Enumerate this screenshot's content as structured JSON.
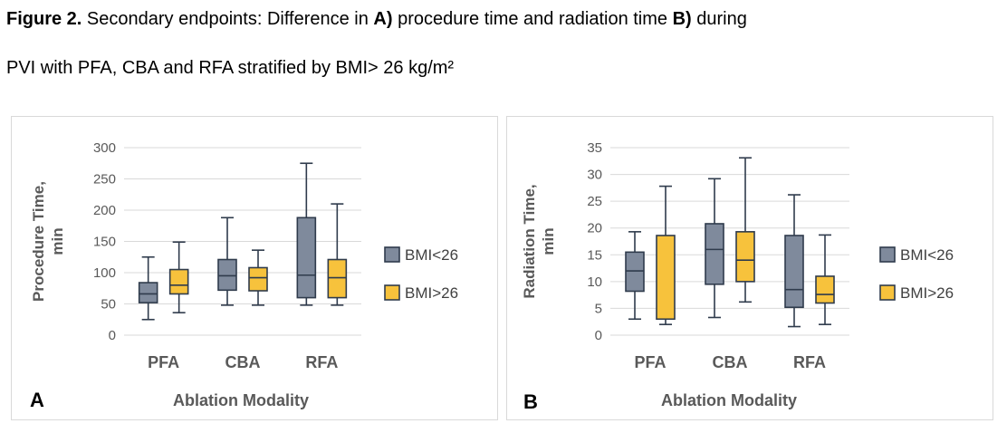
{
  "caption": {
    "line1_bold": "Figure 2.",
    "line1_a": " Secondary endpoints: Difference in ",
    "line1_bold2": "A)",
    "line1_b": " procedure time and radiation time ",
    "line1_bold3": "B)",
    "line1_c": " during",
    "line2": "PVI with PFA, CBA and RFA stratified by BMI> 26 kg/m²"
  },
  "colors": {
    "bmi_low": "#7f8a9c",
    "bmi_high": "#f7c23c",
    "stroke": "#2f3b4c",
    "grid": "#d9d9d9",
    "axis_text": "#595959"
  },
  "chart_data": [
    {
      "panel_label": "A",
      "type": "boxplot",
      "xlabel": "Ablation Modality",
      "ylabel": "Procedure Time,",
      "ylabel2": "min",
      "categories": [
        "PFA",
        "CBA",
        "RFA"
      ],
      "ylim": [
        0,
        300
      ],
      "yticks": [
        0,
        50,
        100,
        150,
        200,
        250,
        300
      ],
      "grid": true,
      "legend_position": "right",
      "series": [
        {
          "name": "BMI<26",
          "color": "#7f8a9c",
          "boxes": [
            {
              "min": 25,
              "q1": 52,
              "median": 66,
              "q3": 84,
              "max": 125
            },
            {
              "min": 48,
              "q1": 72,
              "median": 95,
              "q3": 121,
              "max": 188
            },
            {
              "min": 48,
              "q1": 60,
              "median": 96,
              "q3": 188,
              "max": 275
            }
          ]
        },
        {
          "name": "BMI>26",
          "color": "#f7c23c",
          "boxes": [
            {
              "min": 36,
              "q1": 66,
              "median": 80,
              "q3": 105,
              "max": 149
            },
            {
              "min": 48,
              "q1": 71,
              "median": 92,
              "q3": 108,
              "max": 136
            },
            {
              "min": 48,
              "q1": 60,
              "median": 92,
              "q3": 121,
              "max": 210
            }
          ]
        }
      ]
    },
    {
      "panel_label": "B",
      "type": "boxplot",
      "xlabel": "Ablation Modality",
      "ylabel": "Radiation Time,",
      "ylabel2": "min",
      "categories": [
        "PFA",
        "CBA",
        "RFA"
      ],
      "ylim": [
        0,
        35
      ],
      "yticks": [
        0,
        5,
        10,
        15,
        20,
        25,
        30,
        35
      ],
      "grid": true,
      "legend_position": "right",
      "series": [
        {
          "name": "BMI<26",
          "color": "#7f8a9c",
          "boxes": [
            {
              "min": 3,
              "q1": 8.2,
              "median": 12,
              "q3": 15.5,
              "max": 19.3
            },
            {
              "min": 3.3,
              "q1": 9.5,
              "median": 16,
              "q3": 20.8,
              "max": 29.2
            },
            {
              "min": 1.6,
              "q1": 5.2,
              "median": 8.5,
              "q3": 18.6,
              "max": 26.2
            }
          ]
        },
        {
          "name": "BMI>26",
          "color": "#f7c23c",
          "boxes": [
            {
              "min": 2,
              "q1": 3,
              "median": 3,
              "q3": 18.6,
              "max": 27.8
            },
            {
              "min": 6.2,
              "q1": 10,
              "median": 14,
              "q3": 19.3,
              "max": 33.1
            },
            {
              "min": 2,
              "q1": 6,
              "median": 7.6,
              "q3": 11,
              "max": 18.7
            }
          ]
        }
      ]
    }
  ]
}
